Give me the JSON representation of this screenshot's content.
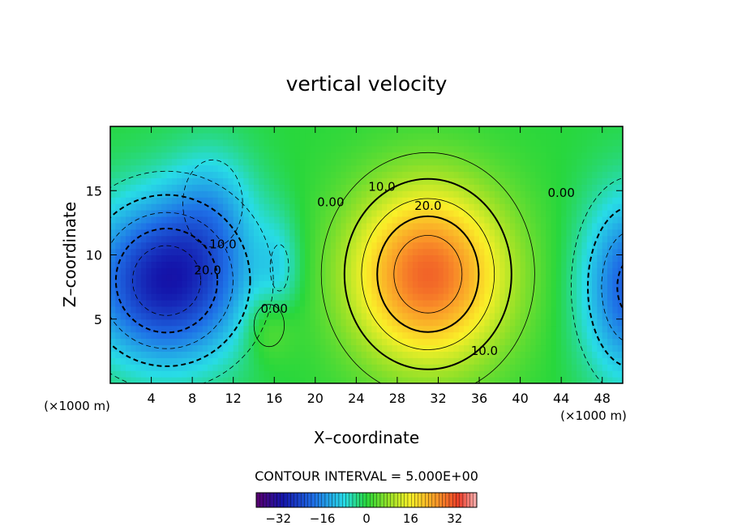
{
  "chart_data": {
    "type": "heatmap",
    "title": "vertical velocity",
    "xlabel": "X–coordinate",
    "ylabel": "Z–coordinate",
    "x_unit_left": "(×1000 m)",
    "x_unit_right": "(×1000 m)",
    "xlim": [
      0,
      50
    ],
    "ylim": [
      0,
      20
    ],
    "x_ticks": [
      4,
      8,
      12,
      16,
      20,
      24,
      28,
      32,
      36,
      40,
      44,
      48
    ],
    "y_ticks": [
      5,
      10,
      15
    ],
    "contour_interval_text": "CONTOUR INTERVAL = 5.000E+00",
    "contour_labels": [
      {
        "text": "0.00",
        "x": 21.5,
        "y": 13.8
      },
      {
        "text": "10.0",
        "x": 26.5,
        "y": 15.0
      },
      {
        "text": "20.0",
        "x": 31.0,
        "y": 13.5
      },
      {
        "text": "0.00",
        "x": 44.0,
        "y": 14.5
      },
      {
        "text": "10.0",
        "x": 36.5,
        "y": 2.2
      },
      {
        "text": "10.0",
        "x": 11.0,
        "y": 10.5
      },
      {
        "text": "20.0",
        "x": 9.5,
        "y": 8.5
      },
      {
        "text": "0.00",
        "x": 16.0,
        "y": 5.5
      }
    ],
    "field_features": [
      {
        "sign": "negative",
        "x": 5.5,
        "y": 8.0,
        "peak": -30,
        "sx": 5.5,
        "sy": 4.5
      },
      {
        "sign": "negative",
        "x": 10.0,
        "y": 14.0,
        "peak": -8,
        "sx": 3.0,
        "sy": 3.5
      },
      {
        "sign": "negative",
        "x": 16.5,
        "y": 9.0,
        "peak": -6,
        "sx": 1.5,
        "sy": 3.0
      },
      {
        "sign": "negative",
        "x": 51.0,
        "y": 7.5,
        "peak": -22,
        "sx": 3.5,
        "sy": 5.0
      },
      {
        "sign": "positive",
        "x": 31.0,
        "y": 8.5,
        "peak": 30,
        "sx": 5.5,
        "sy": 5.0
      },
      {
        "sign": "positive",
        "x": 15.5,
        "y": 4.5,
        "peak": 7,
        "sx": 1.8,
        "sy": 2.0
      }
    ],
    "colorbar": {
      "range": [
        -40,
        40
      ],
      "tick_values": [
        -32,
        -16,
        0,
        16,
        32
      ],
      "tick_labels": [
        "−32",
        "−16",
        "0",
        "16",
        "32"
      ]
    },
    "grid": false
  }
}
